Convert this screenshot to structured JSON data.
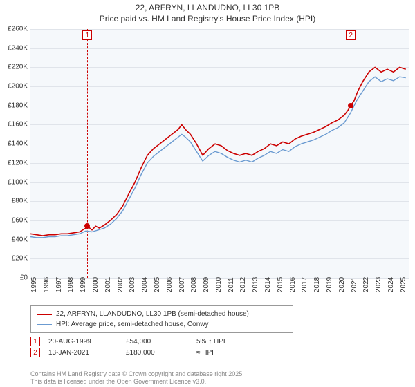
{
  "header": {
    "address": "22, ARFRYN, LLANDUDNO, LL30 1PB",
    "subtitle": "Price paid vs. HM Land Registry's House Price Index (HPI)"
  },
  "chart": {
    "type": "line",
    "background_color": "#f5f8fb",
    "grid_color": "#e0e4ea",
    "y": {
      "min": 0,
      "max": 260000,
      "tick_step": 20000,
      "ticks": [
        "£0",
        "£20K",
        "£40K",
        "£60K",
        "£80K",
        "£100K",
        "£120K",
        "£140K",
        "£160K",
        "£180K",
        "£200K",
        "£220K",
        "£240K",
        "£260K"
      ]
    },
    "x": {
      "min": 1995,
      "max": 2025.8,
      "ticks": [
        1995,
        1996,
        1997,
        1998,
        1999,
        2000,
        2001,
        2002,
        2003,
        2004,
        2005,
        2006,
        2007,
        2008,
        2009,
        2010,
        2011,
        2012,
        2013,
        2014,
        2015,
        2016,
        2017,
        2018,
        2019,
        2020,
        2021,
        2022,
        2023,
        2024,
        2025
      ]
    },
    "series": [
      {
        "name": "price_paid",
        "color": "#cc0000",
        "width": 1.6,
        "points": [
          [
            1995.0,
            46000
          ],
          [
            1995.5,
            45000
          ],
          [
            1996.0,
            44000
          ],
          [
            1996.5,
            45000
          ],
          [
            1997.0,
            45000
          ],
          [
            1997.5,
            46000
          ],
          [
            1998.0,
            46000
          ],
          [
            1998.5,
            47000
          ],
          [
            1999.0,
            48000
          ],
          [
            1999.5,
            52000
          ],
          [
            1999.63,
            54000
          ],
          [
            2000.0,
            50000
          ],
          [
            2000.3,
            54000
          ],
          [
            2000.6,
            52000
          ],
          [
            2001.0,
            55000
          ],
          [
            2001.5,
            60000
          ],
          [
            2002.0,
            66000
          ],
          [
            2002.5,
            75000
          ],
          [
            2003.0,
            88000
          ],
          [
            2003.5,
            100000
          ],
          [
            2004.0,
            115000
          ],
          [
            2004.5,
            128000
          ],
          [
            2005.0,
            135000
          ],
          [
            2005.5,
            140000
          ],
          [
            2006.0,
            145000
          ],
          [
            2006.5,
            150000
          ],
          [
            2007.0,
            155000
          ],
          [
            2007.3,
            160000
          ],
          [
            2007.6,
            155000
          ],
          [
            2008.0,
            150000
          ],
          [
            2008.5,
            140000
          ],
          [
            2009.0,
            128000
          ],
          [
            2009.5,
            135000
          ],
          [
            2010.0,
            140000
          ],
          [
            2010.5,
            138000
          ],
          [
            2011.0,
            133000
          ],
          [
            2011.5,
            130000
          ],
          [
            2012.0,
            128000
          ],
          [
            2012.5,
            130000
          ],
          [
            2013.0,
            128000
          ],
          [
            2013.5,
            132000
          ],
          [
            2014.0,
            135000
          ],
          [
            2014.5,
            140000
          ],
          [
            2015.0,
            138000
          ],
          [
            2015.5,
            142000
          ],
          [
            2016.0,
            140000
          ],
          [
            2016.5,
            145000
          ],
          [
            2017.0,
            148000
          ],
          [
            2017.5,
            150000
          ],
          [
            2018.0,
            152000
          ],
          [
            2018.5,
            155000
          ],
          [
            2019.0,
            158000
          ],
          [
            2019.5,
            162000
          ],
          [
            2020.0,
            165000
          ],
          [
            2020.5,
            170000
          ],
          [
            2020.8,
            175000
          ],
          [
            2021.03,
            180000
          ],
          [
            2021.3,
            185000
          ],
          [
            2021.6,
            195000
          ],
          [
            2022.0,
            205000
          ],
          [
            2022.5,
            215000
          ],
          [
            2023.0,
            220000
          ],
          [
            2023.5,
            215000
          ],
          [
            2024.0,
            218000
          ],
          [
            2024.5,
            215000
          ],
          [
            2025.0,
            220000
          ],
          [
            2025.5,
            218000
          ]
        ]
      },
      {
        "name": "hpi",
        "color": "#6b9bd1",
        "width": 1.4,
        "points": [
          [
            1995.0,
            43000
          ],
          [
            1995.5,
            42000
          ],
          [
            1996.0,
            42000
          ],
          [
            1996.5,
            43000
          ],
          [
            1997.0,
            43000
          ],
          [
            1997.5,
            44000
          ],
          [
            1998.0,
            44000
          ],
          [
            1998.5,
            45000
          ],
          [
            1999.0,
            46000
          ],
          [
            1999.5,
            49000
          ],
          [
            2000.0,
            48000
          ],
          [
            2000.5,
            50000
          ],
          [
            2001.0,
            52000
          ],
          [
            2001.5,
            56000
          ],
          [
            2002.0,
            62000
          ],
          [
            2002.5,
            70000
          ],
          [
            2003.0,
            82000
          ],
          [
            2003.5,
            94000
          ],
          [
            2004.0,
            108000
          ],
          [
            2004.5,
            120000
          ],
          [
            2005.0,
            127000
          ],
          [
            2005.5,
            132000
          ],
          [
            2006.0,
            137000
          ],
          [
            2006.5,
            142000
          ],
          [
            2007.0,
            147000
          ],
          [
            2007.3,
            150000
          ],
          [
            2007.6,
            147000
          ],
          [
            2008.0,
            142000
          ],
          [
            2008.5,
            132000
          ],
          [
            2009.0,
            122000
          ],
          [
            2009.5,
            128000
          ],
          [
            2010.0,
            132000
          ],
          [
            2010.5,
            130000
          ],
          [
            2011.0,
            126000
          ],
          [
            2011.5,
            123000
          ],
          [
            2012.0,
            121000
          ],
          [
            2012.5,
            123000
          ],
          [
            2013.0,
            121000
          ],
          [
            2013.5,
            125000
          ],
          [
            2014.0,
            128000
          ],
          [
            2014.5,
            132000
          ],
          [
            2015.0,
            130000
          ],
          [
            2015.5,
            134000
          ],
          [
            2016.0,
            132000
          ],
          [
            2016.5,
            137000
          ],
          [
            2017.0,
            140000
          ],
          [
            2017.5,
            142000
          ],
          [
            2018.0,
            144000
          ],
          [
            2018.5,
            147000
          ],
          [
            2019.0,
            150000
          ],
          [
            2019.5,
            154000
          ],
          [
            2020.0,
            157000
          ],
          [
            2020.5,
            162000
          ],
          [
            2021.0,
            172000
          ],
          [
            2021.5,
            185000
          ],
          [
            2022.0,
            195000
          ],
          [
            2022.5,
            205000
          ],
          [
            2023.0,
            210000
          ],
          [
            2023.5,
            205000
          ],
          [
            2024.0,
            208000
          ],
          [
            2024.5,
            206000
          ],
          [
            2025.0,
            210000
          ],
          [
            2025.5,
            209000
          ]
        ]
      }
    ],
    "markers": [
      {
        "n": "1",
        "x": 1999.63,
        "y": 54000,
        "color": "#cc0000"
      },
      {
        "n": "2",
        "x": 2021.03,
        "y": 180000,
        "color": "#cc0000"
      }
    ]
  },
  "legend": {
    "series1": "22, ARFRYN, LLANDUDNO, LL30 1PB (semi-detached house)",
    "series2": "HPI: Average price, semi-detached house, Conwy",
    "color1": "#cc0000",
    "color2": "#6b9bd1"
  },
  "sales": [
    {
      "n": "1",
      "date": "20-AUG-1999",
      "price": "£54,000",
      "hpi": "5% ↑ HPI",
      "color": "#cc0000"
    },
    {
      "n": "2",
      "date": "13-JAN-2021",
      "price": "£180,000",
      "hpi": "≈ HPI",
      "color": "#cc0000"
    }
  ],
  "attribution": {
    "line1": "Contains HM Land Registry data © Crown copyright and database right 2025.",
    "line2": "This data is licensed under the Open Government Licence v3.0."
  }
}
